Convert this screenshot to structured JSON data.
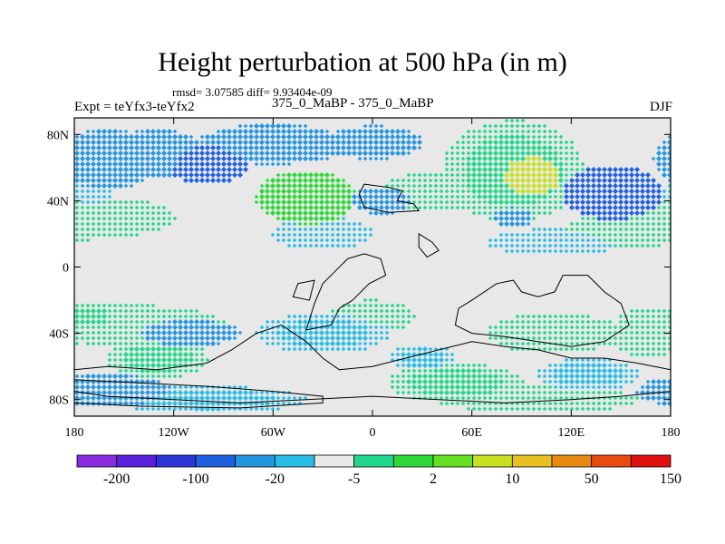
{
  "chart_data": {
    "type": "heatmap",
    "title": "Height perturbation at 500 hPa (in m)",
    "stats_line": "rmsd= 3.07585 diff= 9.93404e-09",
    "experiment": "Expt = teYfx3-teYfx2",
    "period": "375_0_MaBP - 375_0_MaBP",
    "season": "DJF",
    "x_ticks": [
      "180",
      "120W",
      "60W",
      "0",
      "60E",
      "120E",
      "180"
    ],
    "x_tick_lon": [
      -180,
      -120,
      -60,
      0,
      60,
      120,
      180
    ],
    "y_ticks": [
      "80N",
      "40N",
      "0",
      "40S",
      "80S"
    ],
    "y_tick_lat": [
      80,
      40,
      0,
      -40,
      -80
    ],
    "xlim": [
      -180,
      180
    ],
    "ylim": [
      -90,
      90
    ],
    "colorbar": {
      "labels": [
        "-200",
        "-100",
        "-20",
        "-5",
        "2",
        "10",
        "50",
        "150"
      ],
      "colors": [
        "#8a2be2",
        "#5a1fdc",
        "#2a35d8",
        "#2060e0",
        "#2496e0",
        "#27bde6",
        "#e8e8e8",
        "#20d88a",
        "#2ed838",
        "#64e020",
        "#c8e020",
        "#e8c020",
        "#e88a10",
        "#e84a10",
        "#e01010"
      ]
    },
    "anomaly_blobs": [
      {
        "lon": -170,
        "lat": 45,
        "rlon": 14,
        "rlat": 10,
        "level": -1
      },
      {
        "lon": -160,
        "lat": 65,
        "rlon": 30,
        "rlat": 18,
        "level": -3
      },
      {
        "lon": -130,
        "lat": 68,
        "rlon": 30,
        "rlat": 15,
        "level": -3
      },
      {
        "lon": -100,
        "lat": 62,
        "rlon": 25,
        "rlat": 12,
        "level": -4
      },
      {
        "lon": -60,
        "lat": 74,
        "rlon": 45,
        "rlat": 12,
        "level": -3
      },
      {
        "lon": 0,
        "lat": 75,
        "rlon": 30,
        "rlat": 10,
        "level": -3
      },
      {
        "lon": -40,
        "lat": 42,
        "rlon": 30,
        "rlat": 16,
        "level": 3
      },
      {
        "lon": -165,
        "lat": 30,
        "rlon": 45,
        "rlat": 12,
        "level": 1
      },
      {
        "lon": 5,
        "lat": 40,
        "rlon": 18,
        "rlat": 8,
        "level": -3
      },
      {
        "lon": 35,
        "lat": 45,
        "rlon": 30,
        "rlat": 12,
        "level": 1
      },
      {
        "lon": 85,
        "lat": 58,
        "rlon": 42,
        "rlat": 30,
        "level": 2
      },
      {
        "lon": 95,
        "lat": 55,
        "rlon": 18,
        "rlat": 12,
        "level": 4
      },
      {
        "lon": 145,
        "lat": 45,
        "rlon": 30,
        "rlat": 16,
        "level": -4
      },
      {
        "lon": 155,
        "lat": 22,
        "rlon": 40,
        "rlat": 10,
        "level": 1
      },
      {
        "lon": 85,
        "lat": 30,
        "rlon": 12,
        "rlat": 6,
        "level": -3
      },
      {
        "lon": -30,
        "lat": 20,
        "rlon": 30,
        "rlat": 10,
        "level": -1
      },
      {
        "lon": 110,
        "lat": 15,
        "rlon": 40,
        "rlat": 8,
        "level": -1
      },
      {
        "lon": -150,
        "lat": -35,
        "rlon": 60,
        "rlat": 12,
        "level": 1
      },
      {
        "lon": -110,
        "lat": -40,
        "rlon": 30,
        "rlat": 8,
        "level": -3
      },
      {
        "lon": -170,
        "lat": -30,
        "rlon": 15,
        "rlat": 8,
        "level": 2
      },
      {
        "lon": -130,
        "lat": -55,
        "rlon": 30,
        "rlat": 12,
        "level": 2
      },
      {
        "lon": -160,
        "lat": -75,
        "rlon": 40,
        "rlat": 10,
        "level": -3
      },
      {
        "lon": -30,
        "lat": -40,
        "rlon": 40,
        "rlat": 12,
        "level": -2
      },
      {
        "lon": 0,
        "lat": -30,
        "rlon": 25,
        "rlat": 10,
        "level": 1
      },
      {
        "lon": 50,
        "lat": -70,
        "rlon": 40,
        "rlat": 12,
        "level": 2
      },
      {
        "lon": 30,
        "lat": -55,
        "rlon": 20,
        "rlat": 8,
        "level": -2
      },
      {
        "lon": 110,
        "lat": -40,
        "rlon": 40,
        "rlat": 12,
        "level": 1
      },
      {
        "lon": 130,
        "lat": -65,
        "rlon": 30,
        "rlat": 10,
        "level": -2
      },
      {
        "lon": 165,
        "lat": -40,
        "rlon": 20,
        "rlat": 15,
        "level": 1
      },
      {
        "lon": -100,
        "lat": -80,
        "rlon": 60,
        "rlat": 8,
        "level": -2
      },
      {
        "lon": 100,
        "lat": -80,
        "rlon": 60,
        "rlat": 8,
        "level": 1
      }
    ]
  }
}
